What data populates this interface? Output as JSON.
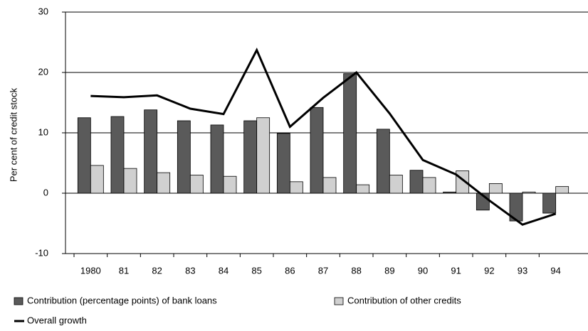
{
  "chart_data": {
    "type": "bar",
    "y_label": "Per cent of credit stock",
    "categories": [
      "1980",
      "81",
      "82",
      "83",
      "84",
      "85",
      "86",
      "87",
      "88",
      "89",
      "90",
      "91",
      "92",
      "93",
      "94"
    ],
    "series": [
      {
        "name": "Contribution (percentage points) of bank loans",
        "type": "bar",
        "color": "#5a5a5a",
        "values": [
          12.5,
          12.7,
          13.8,
          12.0,
          11.3,
          12.0,
          9.9,
          14.2,
          19.8,
          10.6,
          3.8,
          0.2,
          -2.8,
          -4.6,
          -3.3
        ]
      },
      {
        "name": "Contribution of other credits",
        "type": "bar",
        "color": "#d0d0d0",
        "values": [
          4.6,
          4.1,
          3.4,
          3.0,
          2.8,
          12.5,
          1.9,
          2.6,
          1.4,
          3.0,
          2.6,
          3.7,
          1.6,
          0.2,
          1.1
        ]
      },
      {
        "name": "Overall growth",
        "type": "line",
        "color": "#000000",
        "values": [
          16.1,
          15.9,
          16.2,
          14.0,
          13.1,
          23.7,
          11.0,
          15.8,
          20.0,
          13.2,
          5.5,
          3.1,
          -1.2,
          -5.2,
          -3.4
        ]
      }
    ],
    "ylim": [
      -10,
      30
    ],
    "yticks": [
      -10,
      0,
      10,
      20,
      30
    ],
    "grid": true
  }
}
